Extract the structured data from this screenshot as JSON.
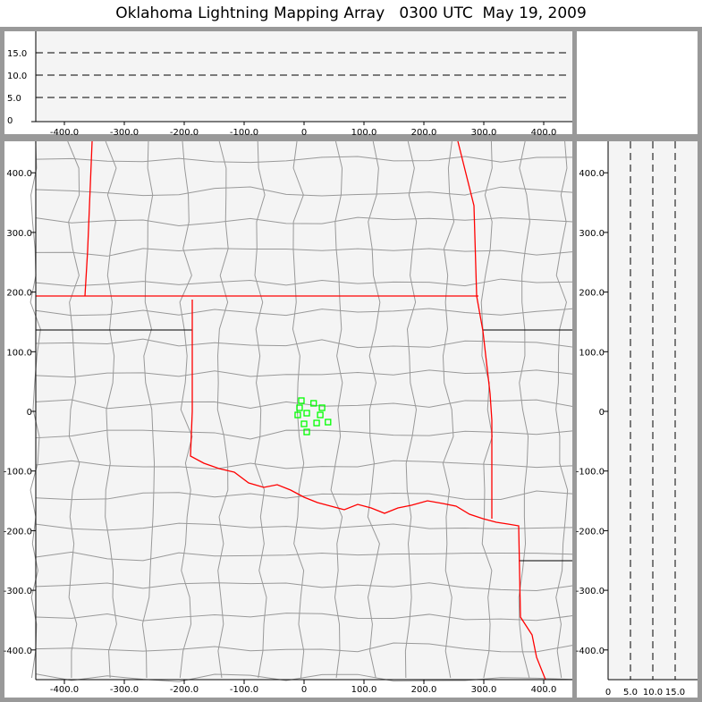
{
  "title": "Oklahoma Lightning Mapping Array   0300 UTC  May 19, 2009",
  "colors": {
    "state_border": "#ff0000",
    "county_border": "#999999",
    "flash_source": "#00ff00",
    "plot_bg": "#f4f4f4",
    "frame": "#999999"
  },
  "plan_view": {
    "x_ticks": [
      "-400.0",
      "-300.0",
      "-200.0",
      "-100.0",
      "0",
      "100.0",
      "200.0",
      "300.0",
      "400.0"
    ],
    "x_values": [
      -400,
      -300,
      -200,
      -100,
      0,
      100,
      200,
      300,
      400
    ],
    "y_ticks": [
      "400.0",
      "300.0",
      "200.0",
      "100.0",
      "0",
      "-100.0",
      "-200.0",
      "-300.0",
      "-400.0"
    ],
    "y_values": [
      400,
      300,
      200,
      100,
      0,
      -100,
      -200,
      -300,
      -400
    ],
    "xlim": [
      -450,
      450
    ],
    "ylim": [
      -450,
      450
    ]
  },
  "top_panel": {
    "y_ticks": [
      "0",
      "5.0",
      "10.0",
      "15.0"
    ],
    "y_values": [
      0,
      5,
      10,
      15
    ],
    "x_ticks": [
      "-400.0",
      "-300.0",
      "-200.0",
      "-100.0",
      "0",
      "100.0",
      "200.0",
      "300.0",
      "400.0"
    ]
  },
  "right_panel": {
    "x_ticks": [
      "0",
      "5.0",
      "10.0",
      "15.0"
    ],
    "x_values": [
      0,
      5,
      10,
      15
    ],
    "y_ticks": [
      "400.0",
      "300.0",
      "200.0",
      "100.0",
      "0",
      "-100.0",
      "-200.0",
      "-300.0",
      "-400.0"
    ]
  },
  "sources": [
    [
      -4.5,
      18
    ],
    [
      16,
      13.5
    ],
    [
      30,
      6
    ],
    [
      -7.5,
      6
    ],
    [
      -10.5,
      -6
    ],
    [
      4.5,
      -3
    ],
    [
      27,
      -6
    ],
    [
      40,
      -18
    ],
    [
      0,
      -21
    ],
    [
      21,
      -19.5
    ],
    [
      4.5,
      -34.5
    ]
  ]
}
